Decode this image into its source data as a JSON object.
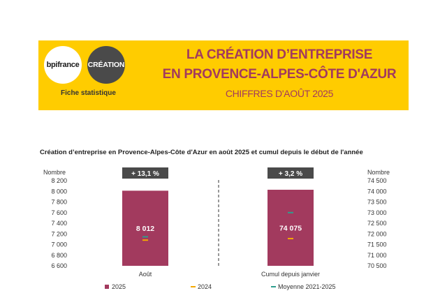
{
  "header": {
    "logo_left": "bpifrance",
    "logo_right": "CRÉATION",
    "subtitle": "Fiche statistique",
    "title_line1": "LA CRÉATION D’ENTREPRISE",
    "title_line2": "EN PROVENCE-ALPES-CÔTE D'AZUR",
    "title_line3": "CHIFFRES D'AOÛT 2025"
  },
  "colors": {
    "banner": "#ffcc00",
    "title": "#a23a5e",
    "bar_2025": "#a23a5e",
    "marker_2024": "#f5a800",
    "marker_avg": "#2e9e8e",
    "badge": "#4a4a4a"
  },
  "chart_data": {
    "type": "bar",
    "title": "Création d’entreprise en Provence-Alpes-Côte d'Azur en août 2025 et cumul depuis le début de l'année",
    "categories": [
      "Août",
      "Cumul depuis janvier"
    ],
    "left_axis": {
      "label": "Nombre",
      "range": [
        6600,
        8200
      ],
      "ticks": [
        "6 600",
        "6 800",
        "7 000",
        "7 200",
        "7 400",
        "7 600",
        "7 800",
        "8 000",
        "8 200"
      ]
    },
    "right_axis": {
      "label": "Nombre",
      "range": [
        70500,
        74500
      ],
      "ticks": [
        "70 500",
        "71 000",
        "71 500",
        "72 000",
        "72 500",
        "73 000",
        "73 500",
        "74 000",
        "74 500"
      ]
    },
    "series": [
      {
        "name": "2025",
        "type": "bar",
        "values": [
          8012,
          74075
        ],
        "labels": [
          "8 012",
          "74 075"
        ]
      },
      {
        "name": "2024",
        "type": "marker",
        "values": [
          7083,
          71780
        ]
      },
      {
        "name": "Moyenne 2021-2025",
        "type": "marker",
        "values": [
          7145,
          73000
        ]
      }
    ],
    "badges": [
      "+ 13,1 %",
      "+ 3,2 %"
    ],
    "legend_position": "bottom"
  }
}
